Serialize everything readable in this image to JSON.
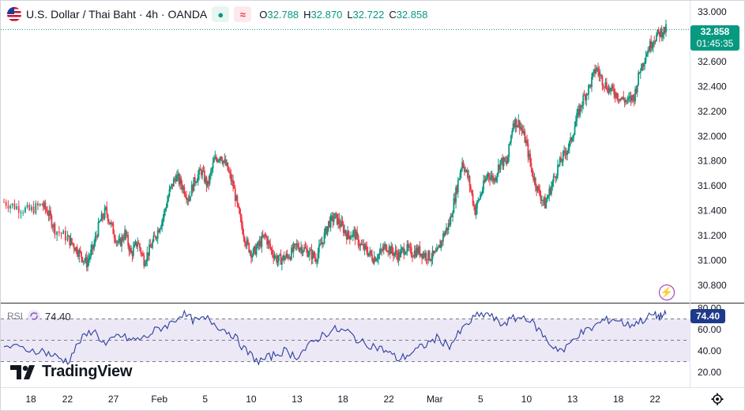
{
  "header": {
    "symbol_text": "U.S. Dollar / Thai Baht · 4h · OANDA",
    "dot_icon": "dot-icon",
    "wave_icon": "wave-icon",
    "ohlc": [
      {
        "key": "O",
        "value": "32.788"
      },
      {
        "key": "H",
        "value": "32.870"
      },
      {
        "key": "L",
        "value": "32.722"
      },
      {
        "key": "C",
        "value": "32.858"
      }
    ]
  },
  "price_tag": {
    "price": "32.858",
    "countdown": "01:45:35"
  },
  "rsi": {
    "name": "RSI",
    "value": "74.40"
  },
  "watermark": {
    "text": "TradingView"
  },
  "colors": {
    "up": "#089981",
    "down": "#f23645",
    "rsi_line": "#2a3f9e",
    "rsi_band": "#ede8f6",
    "rsi_tag": "#1e3a8a"
  },
  "chart_data": [
    {
      "type": "candlestick",
      "title": "U.S. Dollar / Thai Baht · 4h · OANDA",
      "interval": "4h",
      "ylim": [
        30.7,
        33.05
      ],
      "y_ticks": [
        "33.000",
        "32.800",
        "32.600",
        "32.400",
        "32.200",
        "32.000",
        "31.800",
        "31.600",
        "31.400",
        "31.200",
        "31.000",
        "30.800"
      ],
      "x_ticks": [
        "18",
        "22",
        "27",
        "Feb",
        "5",
        "10",
        "13",
        "18",
        "22",
        "Mar",
        "5",
        "10",
        "13",
        "18",
        "22"
      ],
      "x_tick_positions": [
        0.0,
        8.0,
        18.0,
        28.0,
        38.0,
        48.0,
        58.0,
        68.0,
        78.0,
        88.0,
        98.0,
        108.0,
        118.0,
        128.0,
        136.0
      ],
      "last_price": 32.858,
      "anchors": [
        [
          0,
          31.47
        ],
        [
          2,
          31.43
        ],
        [
          4,
          31.4
        ],
        [
          6,
          31.45
        ],
        [
          7,
          31.38
        ],
        [
          8,
          31.25
        ],
        [
          10,
          31.18
        ],
        [
          11,
          31.12
        ],
        [
          12,
          31.05
        ],
        [
          13,
          30.98
        ],
        [
          14,
          31.1
        ],
        [
          15,
          31.3
        ],
        [
          16,
          31.4
        ],
        [
          17,
          31.26
        ],
        [
          18,
          31.12
        ],
        [
          19,
          31.22
        ],
        [
          20,
          31.05
        ],
        [
          21,
          31.15
        ],
        [
          22,
          31.0
        ],
        [
          23,
          31.1
        ],
        [
          24,
          31.22
        ],
        [
          25,
          31.35
        ],
        [
          26,
          31.55
        ],
        [
          27,
          31.68
        ],
        [
          28,
          31.6
        ],
        [
          29,
          31.5
        ],
        [
          30,
          31.65
        ],
        [
          31,
          31.72
        ],
        [
          32,
          31.6
        ],
        [
          33,
          31.8
        ],
        [
          34,
          31.85
        ],
        [
          35,
          31.75
        ],
        [
          36,
          31.6
        ],
        [
          37,
          31.35
        ],
        [
          38,
          31.15
        ],
        [
          39,
          31.05
        ],
        [
          40,
          31.12
        ],
        [
          41,
          31.2
        ],
        [
          42,
          31.08
        ],
        [
          43,
          31.0
        ],
        [
          44,
          31.02
        ],
        [
          45,
          31.05
        ],
        [
          46,
          31.12
        ],
        [
          47,
          31.1
        ],
        [
          48,
          31.06
        ],
        [
          49,
          31.02
        ],
        [
          50,
          31.15
        ],
        [
          51,
          31.3
        ],
        [
          52,
          31.35
        ],
        [
          53,
          31.28
        ],
        [
          54,
          31.2
        ],
        [
          55,
          31.22
        ],
        [
          56,
          31.12
        ],
        [
          57,
          31.08
        ],
        [
          58,
          31.02
        ],
        [
          59,
          31.05
        ],
        [
          60,
          31.12
        ],
        [
          61,
          31.07
        ],
        [
          62,
          31.04
        ],
        [
          63,
          31.1
        ],
        [
          64,
          31.06
        ],
        [
          65,
          31.08
        ],
        [
          66,
          31.05
        ],
        [
          67,
          31.03
        ],
        [
          68,
          31.05
        ],
        [
          69,
          31.2
        ],
        [
          70,
          31.3
        ],
        [
          71,
          31.55
        ],
        [
          72,
          31.8
        ],
        [
          73,
          31.65
        ],
        [
          74,
          31.4
        ],
        [
          75,
          31.55
        ],
        [
          76,
          31.7
        ],
        [
          77,
          31.65
        ],
        [
          78,
          31.8
        ],
        [
          79,
          31.78
        ],
        [
          80,
          32.12
        ],
        [
          81,
          32.1
        ],
        [
          82,
          31.95
        ],
        [
          83,
          31.7
        ],
        [
          84,
          31.55
        ],
        [
          85,
          31.45
        ],
        [
          86,
          31.6
        ],
        [
          87,
          31.75
        ],
        [
          88,
          31.85
        ],
        [
          89,
          31.95
        ],
        [
          90,
          32.15
        ],
        [
          91,
          32.3
        ],
        [
          92,
          32.4
        ],
        [
          93,
          32.55
        ],
        [
          94,
          32.45
        ],
        [
          95,
          32.38
        ],
        [
          96,
          32.35
        ],
        [
          97,
          32.3
        ],
        [
          98,
          32.28
        ],
        [
          99,
          32.32
        ],
        [
          100,
          32.55
        ],
        [
          101,
          32.68
        ],
        [
          102,
          32.78
        ],
        [
          103,
          32.83
        ],
        [
          104,
          32.858
        ]
      ]
    },
    {
      "type": "line",
      "title": "RSI",
      "ylim": [
        20,
        80
      ],
      "y_ticks": [
        "80.00",
        "60.00",
        "40.00",
        "20.00"
      ],
      "levels": [
        70,
        50,
        30
      ],
      "last_value": 74.4,
      "anchors": [
        [
          0,
          45
        ],
        [
          3,
          42
        ],
        [
          6,
          40
        ],
        [
          8,
          35
        ],
        [
          10,
          30
        ],
        [
          12,
          50
        ],
        [
          14,
          60
        ],
        [
          16,
          45
        ],
        [
          18,
          55
        ],
        [
          20,
          50
        ],
        [
          22,
          52
        ],
        [
          24,
          60
        ],
        [
          26,
          65
        ],
        [
          28,
          75
        ],
        [
          30,
          68
        ],
        [
          32,
          70
        ],
        [
          34,
          62
        ],
        [
          36,
          55
        ],
        [
          38,
          40
        ],
        [
          40,
          30
        ],
        [
          42,
          35
        ],
        [
          44,
          40
        ],
        [
          46,
          35
        ],
        [
          48,
          45
        ],
        [
          50,
          55
        ],
        [
          52,
          60
        ],
        [
          54,
          58
        ],
        [
          56,
          48
        ],
        [
          58,
          45
        ],
        [
          60,
          40
        ],
        [
          62,
          32
        ],
        [
          64,
          38
        ],
        [
          66,
          45
        ],
        [
          68,
          52
        ],
        [
          70,
          45
        ],
        [
          72,
          60
        ],
        [
          74,
          72
        ],
        [
          76,
          75
        ],
        [
          78,
          65
        ],
        [
          80,
          70
        ],
        [
          82,
          72
        ],
        [
          84,
          60
        ],
        [
          86,
          45
        ],
        [
          88,
          40
        ],
        [
          90,
          55
        ],
        [
          92,
          60
        ],
        [
          94,
          68
        ],
        [
          96,
          70
        ],
        [
          98,
          64
        ],
        [
          100,
          68
        ],
        [
          102,
          74
        ],
        [
          103,
          72
        ],
        [
          104,
          74.4
        ]
      ]
    }
  ]
}
